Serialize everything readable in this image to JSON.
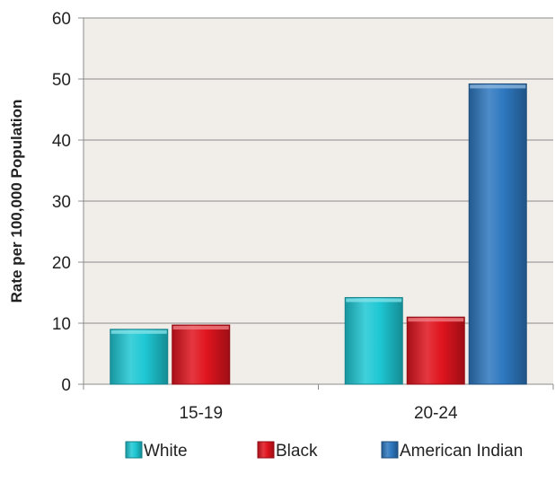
{
  "chart_data": {
    "type": "bar",
    "title": "",
    "xlabel": "",
    "ylabel": "Rate per 100,000 Population",
    "ylim": [
      0,
      60
    ],
    "yticks": [
      0,
      10,
      20,
      30,
      40,
      50,
      60
    ],
    "categories": [
      "15-19",
      "20-24"
    ],
    "series": [
      {
        "name": "White",
        "values": [
          9,
          14.2
        ],
        "color": "#1ec8d4"
      },
      {
        "name": "Black",
        "values": [
          9.7,
          11
        ],
        "color": "#e0141e"
      },
      {
        "name": "American Indian",
        "values": [
          null,
          49.2
        ],
        "color": "#2e78c0"
      }
    ],
    "grid": true,
    "legend_position": "bottom",
    "plot_background": "#f1eeea"
  }
}
